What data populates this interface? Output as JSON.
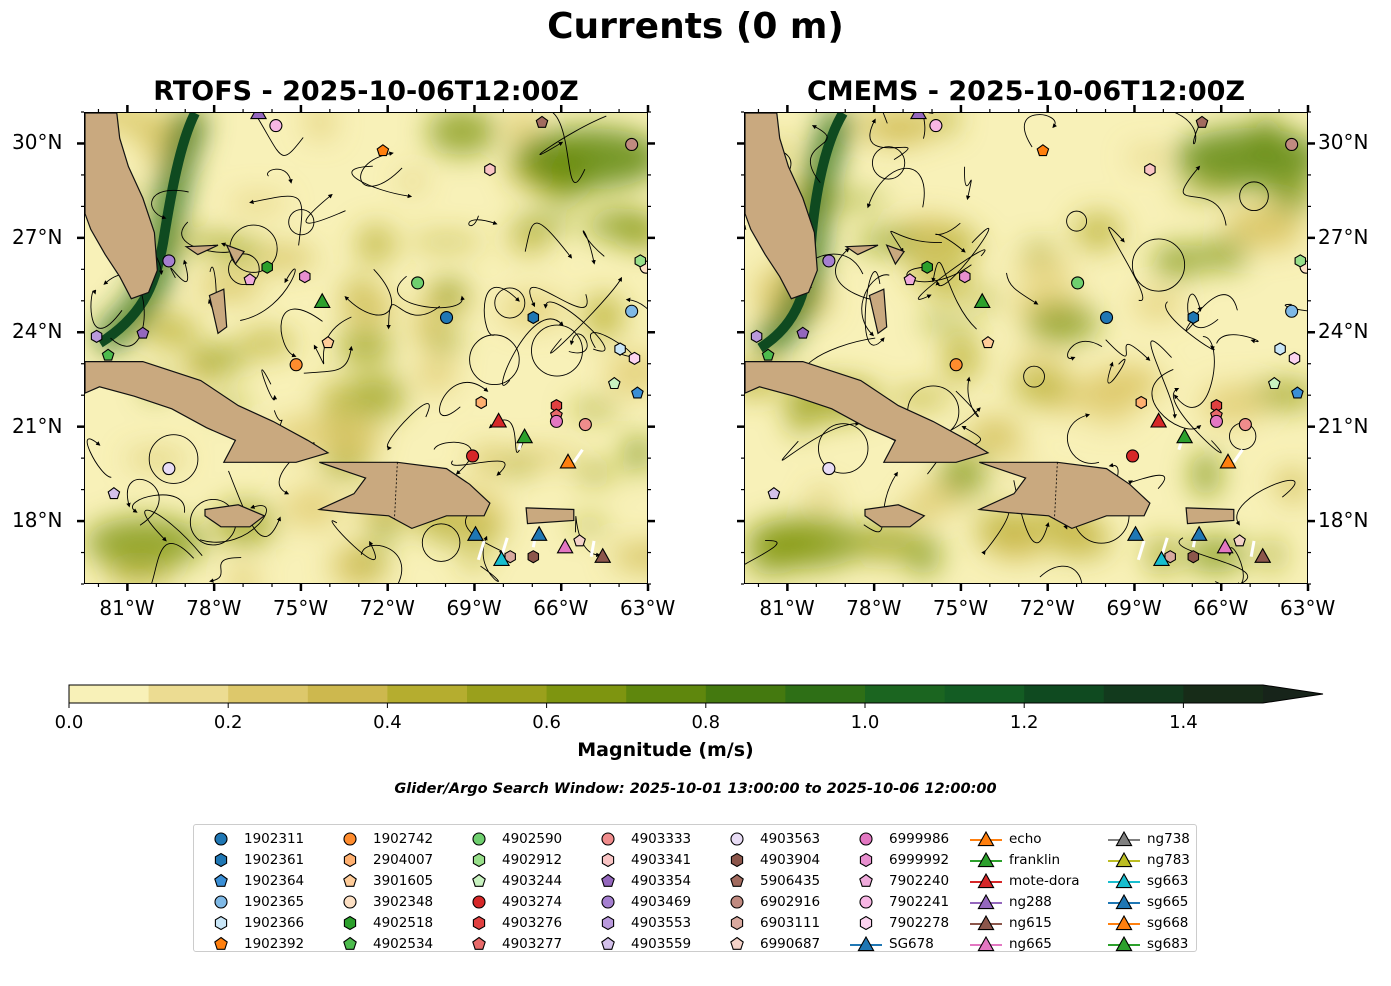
{
  "figure": {
    "title": "Currents (0 m)",
    "window_text": "Glider/Argo Search Window: 2025-10-01 13:00:00 to 2025-10-06 12:00:00"
  },
  "panels": [
    {
      "id": "rtofs",
      "title": "RTOFS - 2025-10-06T12:00Z",
      "lat_label_side": "left"
    },
    {
      "id": "cmems",
      "title": "CMEMS - 2025-10-06T12:00Z",
      "lat_label_side": "right"
    }
  ],
  "map_extent": {
    "lon": [
      -82.5,
      -63.0
    ],
    "lat": [
      16.0,
      31.0
    ]
  },
  "lon_ticks": [
    {
      "value": -81,
      "label": "81°W"
    },
    {
      "value": -78,
      "label": "78°W"
    },
    {
      "value": -75,
      "label": "75°W"
    },
    {
      "value": -72,
      "label": "72°W"
    },
    {
      "value": -69,
      "label": "69°W"
    },
    {
      "value": -66,
      "label": "66°W"
    },
    {
      "value": -63,
      "label": "63°W"
    }
  ],
  "lat_ticks": [
    {
      "value": 18,
      "label": "18°N"
    },
    {
      "value": 21,
      "label": "21°N"
    },
    {
      "value": 24,
      "label": "24°N"
    },
    {
      "value": 27,
      "label": "27°N"
    },
    {
      "value": 30,
      "label": "30°N"
    }
  ],
  "colorbar": {
    "label": "Magnitude (m/s)",
    "min": 0.0,
    "max": 1.5,
    "extend": "max",
    "ticks": [
      {
        "value": 0.0,
        "label": "0.0"
      },
      {
        "value": 0.2,
        "label": "0.2"
      },
      {
        "value": 0.4,
        "label": "0.4"
      },
      {
        "value": 0.6,
        "label": "0.6"
      },
      {
        "value": 0.8,
        "label": "0.8"
      },
      {
        "value": 1.0,
        "label": "1.0"
      },
      {
        "value": 1.2,
        "label": "1.2"
      },
      {
        "value": 1.4,
        "label": "1.4"
      }
    ],
    "colors": [
      "#f8f1b8",
      "#ecdc92",
      "#ddc86b",
      "#cdb84e",
      "#b5ad2f",
      "#9aa01c",
      "#7e9510",
      "#5f870d",
      "#44790f",
      "#2e6f16",
      "#1b6520",
      "#135c23",
      "#0f4a20",
      "#123a1d",
      "#172c18"
    ],
    "extend_color": "#17241a"
  },
  "colors": {
    "land": "#c9a97f",
    "coast": "#111111",
    "streamline": "#000000",
    "glider_track": "#ffffff"
  },
  "legend_items": [
    {
      "label": "1902311",
      "marker": "circle",
      "color": "#1f77b4"
    },
    {
      "label": "1902361",
      "marker": "hexagon",
      "color": "#1f77b4"
    },
    {
      "label": "1902364",
      "marker": "pentagon",
      "color": "#3a8fd6"
    },
    {
      "label": "1902365",
      "marker": "circle",
      "color": "#7fb9e6"
    },
    {
      "label": "1902366",
      "marker": "hexagon",
      "color": "#c9e6f7"
    },
    {
      "label": "1902392",
      "marker": "pentagon",
      "color": "#ff7f0e"
    },
    {
      "label": "1902742",
      "marker": "circle",
      "color": "#ff8c2e"
    },
    {
      "label": "2904007",
      "marker": "hexagon",
      "color": "#ffb070"
    },
    {
      "label": "3901605",
      "marker": "pentagon",
      "color": "#ffcc99"
    },
    {
      "label": "3902348",
      "marker": "circle",
      "color": "#fde0c4"
    },
    {
      "label": "4902518",
      "marker": "hexagon",
      "color": "#2ca02c"
    },
    {
      "label": "4902534",
      "marker": "pentagon",
      "color": "#4dbb4d"
    },
    {
      "label": "4902590",
      "marker": "circle",
      "color": "#6fcf6f"
    },
    {
      "label": "4902912",
      "marker": "hexagon",
      "color": "#98df8a"
    },
    {
      "label": "4903244",
      "marker": "pentagon",
      "color": "#c8f2c0"
    },
    {
      "label": "4903274",
      "marker": "circle",
      "color": "#d62728"
    },
    {
      "label": "4903276",
      "marker": "hexagon",
      "color": "#e04040"
    },
    {
      "label": "4903277",
      "marker": "pentagon",
      "color": "#e86a6a"
    },
    {
      "label": "4903333",
      "marker": "circle",
      "color": "#f08c8c"
    },
    {
      "label": "4903341",
      "marker": "hexagon",
      "color": "#f9c4c4"
    },
    {
      "label": "4903354",
      "marker": "pentagon",
      "color": "#9467bd"
    },
    {
      "label": "4903469",
      "marker": "circle",
      "color": "#a57fd0"
    },
    {
      "label": "4903553",
      "marker": "hexagon",
      "color": "#b999dc"
    },
    {
      "label": "4903559",
      "marker": "pentagon",
      "color": "#d3c0ea"
    },
    {
      "label": "4903563",
      "marker": "circle",
      "color": "#e8dcf5"
    },
    {
      "label": "4903904",
      "marker": "hexagon",
      "color": "#8c564b"
    },
    {
      "label": "5906435",
      "marker": "pentagon",
      "color": "#a26b5f"
    },
    {
      "label": "6902916",
      "marker": "circle",
      "color": "#c08a80"
    },
    {
      "label": "6903111",
      "marker": "hexagon",
      "color": "#d8a99f"
    },
    {
      "label": "6990687",
      "marker": "pentagon",
      "color": "#f4d2c8"
    },
    {
      "label": "6999986",
      "marker": "circle",
      "color": "#e377c2"
    },
    {
      "label": "6999992",
      "marker": "hexagon",
      "color": "#e88fcf"
    },
    {
      "label": "7902240",
      "marker": "pentagon",
      "color": "#efaadb"
    },
    {
      "label": "7902241",
      "marker": "circle",
      "color": "#f7b6e4"
    },
    {
      "label": "7902278",
      "marker": "hexagon",
      "color": "#fbd3ef"
    },
    {
      "label": "SG678",
      "marker": "triangle-line",
      "color": "#1f77b4"
    },
    {
      "label": "echo",
      "marker": "triangle-line",
      "color": "#ff7f0e"
    },
    {
      "label": "franklin",
      "marker": "triangle-line",
      "color": "#2ca02c"
    },
    {
      "label": "mote-dora",
      "marker": "triangle-line",
      "color": "#d62728"
    },
    {
      "label": "ng288",
      "marker": "triangle-line",
      "color": "#9467bd"
    },
    {
      "label": "ng615",
      "marker": "triangle-line",
      "color": "#8c564b"
    },
    {
      "label": "ng665",
      "marker": "triangle-line",
      "color": "#e377c2"
    },
    {
      "label": "ng738",
      "marker": "triangle-line",
      "color": "#7f7f7f"
    },
    {
      "label": "ng783",
      "marker": "triangle-line",
      "color": "#bcbd22"
    },
    {
      "label": "sg663",
      "marker": "triangle-line",
      "color": "#17becf"
    },
    {
      "label": "sg665",
      "marker": "triangle-line",
      "color": "#1f77b4"
    },
    {
      "label": "sg668",
      "marker": "triangle-line",
      "color": "#ff7f0e"
    },
    {
      "label": "sg683",
      "marker": "triangle-line",
      "color": "#2ca02c"
    }
  ],
  "floats": [
    {
      "id": "1902311",
      "lon": -70.0,
      "lat": 24.5
    },
    {
      "id": "1902361",
      "lon": -67.0,
      "lat": 24.5
    },
    {
      "id": "1902364",
      "lon": -63.4,
      "lat": 22.1
    },
    {
      "id": "1902365",
      "lon": -63.6,
      "lat": 24.7
    },
    {
      "id": "1902366",
      "lon": -64.0,
      "lat": 23.5
    },
    {
      "id": "1902392",
      "lon": -72.2,
      "lat": 29.8
    },
    {
      "id": "1902742",
      "lon": -75.2,
      "lat": 23.0
    },
    {
      "id": "2904007",
      "lon": -68.8,
      "lat": 21.8
    },
    {
      "id": "3901605",
      "lon": -74.1,
      "lat": 23.7
    },
    {
      "id": "3902348",
      "lon": -63.1,
      "lat": 26.1
    },
    {
      "id": "4902518",
      "lon": -76.2,
      "lat": 26.1
    },
    {
      "id": "4902534",
      "lon": -81.7,
      "lat": 23.3
    },
    {
      "id": "4902590",
      "lon": -71.0,
      "lat": 25.6
    },
    {
      "id": "4902912",
      "lon": -63.3,
      "lat": 26.3
    },
    {
      "id": "4903244",
      "lon": -64.2,
      "lat": 22.4
    },
    {
      "id": "4903274",
      "lon": -69.1,
      "lat": 20.1
    },
    {
      "id": "4903276",
      "lon": -66.2,
      "lat": 21.7
    },
    {
      "id": "4903277",
      "lon": -66.2,
      "lat": 21.4
    },
    {
      "id": "4903333",
      "lon": -65.2,
      "lat": 21.1
    },
    {
      "id": "4903341",
      "lon": -68.5,
      "lat": 29.2
    },
    {
      "id": "4903354",
      "lon": -80.5,
      "lat": 24.0
    },
    {
      "id": "4903469",
      "lon": -79.6,
      "lat": 26.3
    },
    {
      "id": "4903553",
      "lon": -82.1,
      "lat": 23.9
    },
    {
      "id": "4903559",
      "lon": -81.5,
      "lat": 18.9
    },
    {
      "id": "4903563",
      "lon": -79.6,
      "lat": 19.7
    },
    {
      "id": "4903904",
      "lon": -67.0,
      "lat": 16.9
    },
    {
      "id": "5906435",
      "lon": -66.7,
      "lat": 30.7
    },
    {
      "id": "6902916",
      "lon": -63.6,
      "lat": 30.0
    },
    {
      "id": "6903111",
      "lon": -67.8,
      "lat": 16.9
    },
    {
      "id": "6990687",
      "lon": -65.4,
      "lat": 17.4
    },
    {
      "id": "6999986",
      "lon": -66.2,
      "lat": 21.2
    },
    {
      "id": "6999992",
      "lon": -74.9,
      "lat": 25.8
    },
    {
      "id": "7902240",
      "lon": -76.8,
      "lat": 25.7
    },
    {
      "id": "7902241",
      "lon": -75.9,
      "lat": 30.6
    },
    {
      "id": "7902278",
      "lon": -63.5,
      "lat": 23.2
    }
  ],
  "gliders": [
    {
      "id": "SG678",
      "lon": -69.0,
      "lat": 17.6
    },
    {
      "id": "echo",
      "lon": -65.8,
      "lat": 19.9
    },
    {
      "id": "franklin",
      "lon": -67.3,
      "lat": 20.7
    },
    {
      "id": "mote-dora",
      "lon": -68.2,
      "lat": 21.2
    },
    {
      "id": "ng288",
      "lon": -76.5,
      "lat": 31.0
    },
    {
      "id": "ng615",
      "lon": -64.6,
      "lat": 16.9
    },
    {
      "id": "ng665",
      "lon": -65.9,
      "lat": 17.2
    },
    {
      "id": "sg663",
      "lon": -68.1,
      "lat": 16.8
    },
    {
      "id": "sg665",
      "lon": -66.8,
      "lat": 17.6
    },
    {
      "id": "sg683",
      "lon": -74.3,
      "lat": 25.0
    }
  ]
}
